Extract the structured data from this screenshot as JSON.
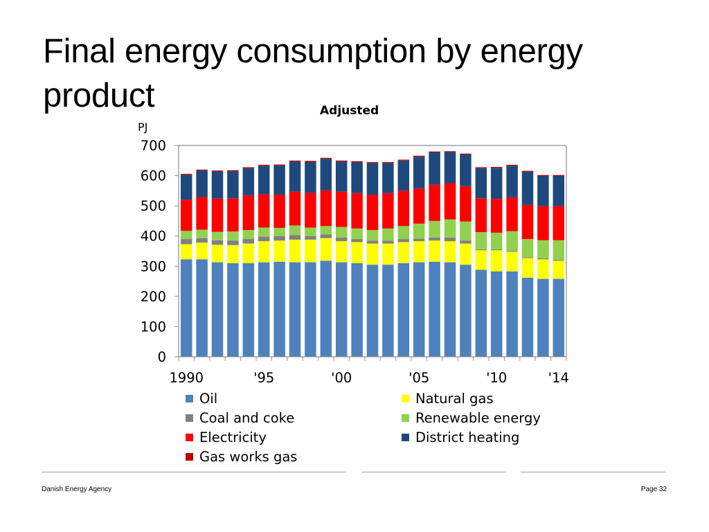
{
  "slide": {
    "title": "Final energy consumption by energy product",
    "footer_left": "Danish Energy Agency",
    "footer_right": "Page 32"
  },
  "chart_data": {
    "type": "bar",
    "stacked": true,
    "title": "Adjusted",
    "ylabel": "PJ",
    "xlabel": "",
    "ylim": [
      0,
      700
    ],
    "yticks": [
      0,
      100,
      200,
      300,
      400,
      500,
      600,
      700
    ],
    "x_tick_labels": [
      {
        "year": 1990,
        "label": "1990"
      },
      {
        "year": 1995,
        "label": "'95"
      },
      {
        "year": 2000,
        "label": "'00"
      },
      {
        "year": 2005,
        "label": "'05"
      },
      {
        "year": 2010,
        "label": "'10"
      },
      {
        "year": 2014,
        "label": "'14"
      }
    ],
    "categories": [
      "1990",
      "1991",
      "1992",
      "1993",
      "1994",
      "1995",
      "1996",
      "1997",
      "1998",
      "1999",
      "2000",
      "2001",
      "2002",
      "2003",
      "2004",
      "2005",
      "2006",
      "2007",
      "2008",
      "2009",
      "2010",
      "2011",
      "2012",
      "2013",
      "2014"
    ],
    "legend_position": "bottom",
    "series": [
      {
        "name": "Oil",
        "color": "#4f81bd",
        "values": [
          323,
          323,
          313,
          310,
          310,
          313,
          315,
          313,
          313,
          318,
          313,
          310,
          305,
          305,
          310,
          313,
          315,
          313,
          305,
          288,
          283,
          283,
          262,
          258,
          258
        ]
      },
      {
        "name": "Natural gas",
        "color": "#ffff00",
        "values": [
          50,
          55,
          58,
          60,
          65,
          70,
          70,
          75,
          75,
          75,
          70,
          70,
          70,
          70,
          70,
          70,
          70,
          70,
          70,
          65,
          70,
          65,
          65,
          65,
          60
        ]
      },
      {
        "name": "Coal and coke",
        "color": "#808080",
        "values": [
          17,
          15,
          15,
          15,
          15,
          15,
          15,
          15,
          12,
          12,
          12,
          10,
          10,
          10,
          10,
          8,
          10,
          12,
          10,
          3,
          3,
          3,
          3,
          3,
          3
        ]
      },
      {
        "name": "Renewable energy",
        "color": "#92d050",
        "values": [
          27,
          28,
          28,
          30,
          30,
          30,
          27,
          32,
          28,
          28,
          35,
          35,
          35,
          40,
          43,
          50,
          55,
          60,
          63,
          57,
          55,
          65,
          60,
          60,
          65
        ]
      },
      {
        "name": "Electricity",
        "color": "#ff0000",
        "values": [
          103,
          108,
          110,
          110,
          115,
          110,
          110,
          112,
          115,
          118,
          117,
          117,
          117,
          117,
          117,
          117,
          120,
          120,
          117,
          112,
          112,
          112,
          113,
          113,
          113
        ]
      },
      {
        "name": "District heating",
        "color": "#1f497d",
        "values": [
          83,
          88,
          90,
          90,
          90,
          95,
          97,
          100,
          103,
          105,
          100,
          103,
          105,
          100,
          100,
          105,
          107,
          103,
          105,
          100,
          103,
          105,
          110,
          100,
          100
        ]
      },
      {
        "name": "Gas works gas",
        "color": "#c00000",
        "values": [
          3,
          3,
          3,
          3,
          3,
          3,
          3,
          3,
          3,
          3,
          3,
          3,
          3,
          3,
          3,
          3,
          3,
          3,
          3,
          3,
          3,
          3,
          3,
          3,
          3
        ]
      }
    ],
    "legend": [
      {
        "name": "Oil",
        "color": "#4f81bd"
      },
      {
        "name": "Natural gas",
        "color": "#ffff00"
      },
      {
        "name": "Coal and coke",
        "color": "#808080"
      },
      {
        "name": "Renewable energy",
        "color": "#92d050"
      },
      {
        "name": "Electricity",
        "color": "#ff0000"
      },
      {
        "name": "District heating",
        "color": "#1f497d"
      },
      {
        "name": "Gas works gas",
        "color": "#c00000"
      }
    ]
  }
}
